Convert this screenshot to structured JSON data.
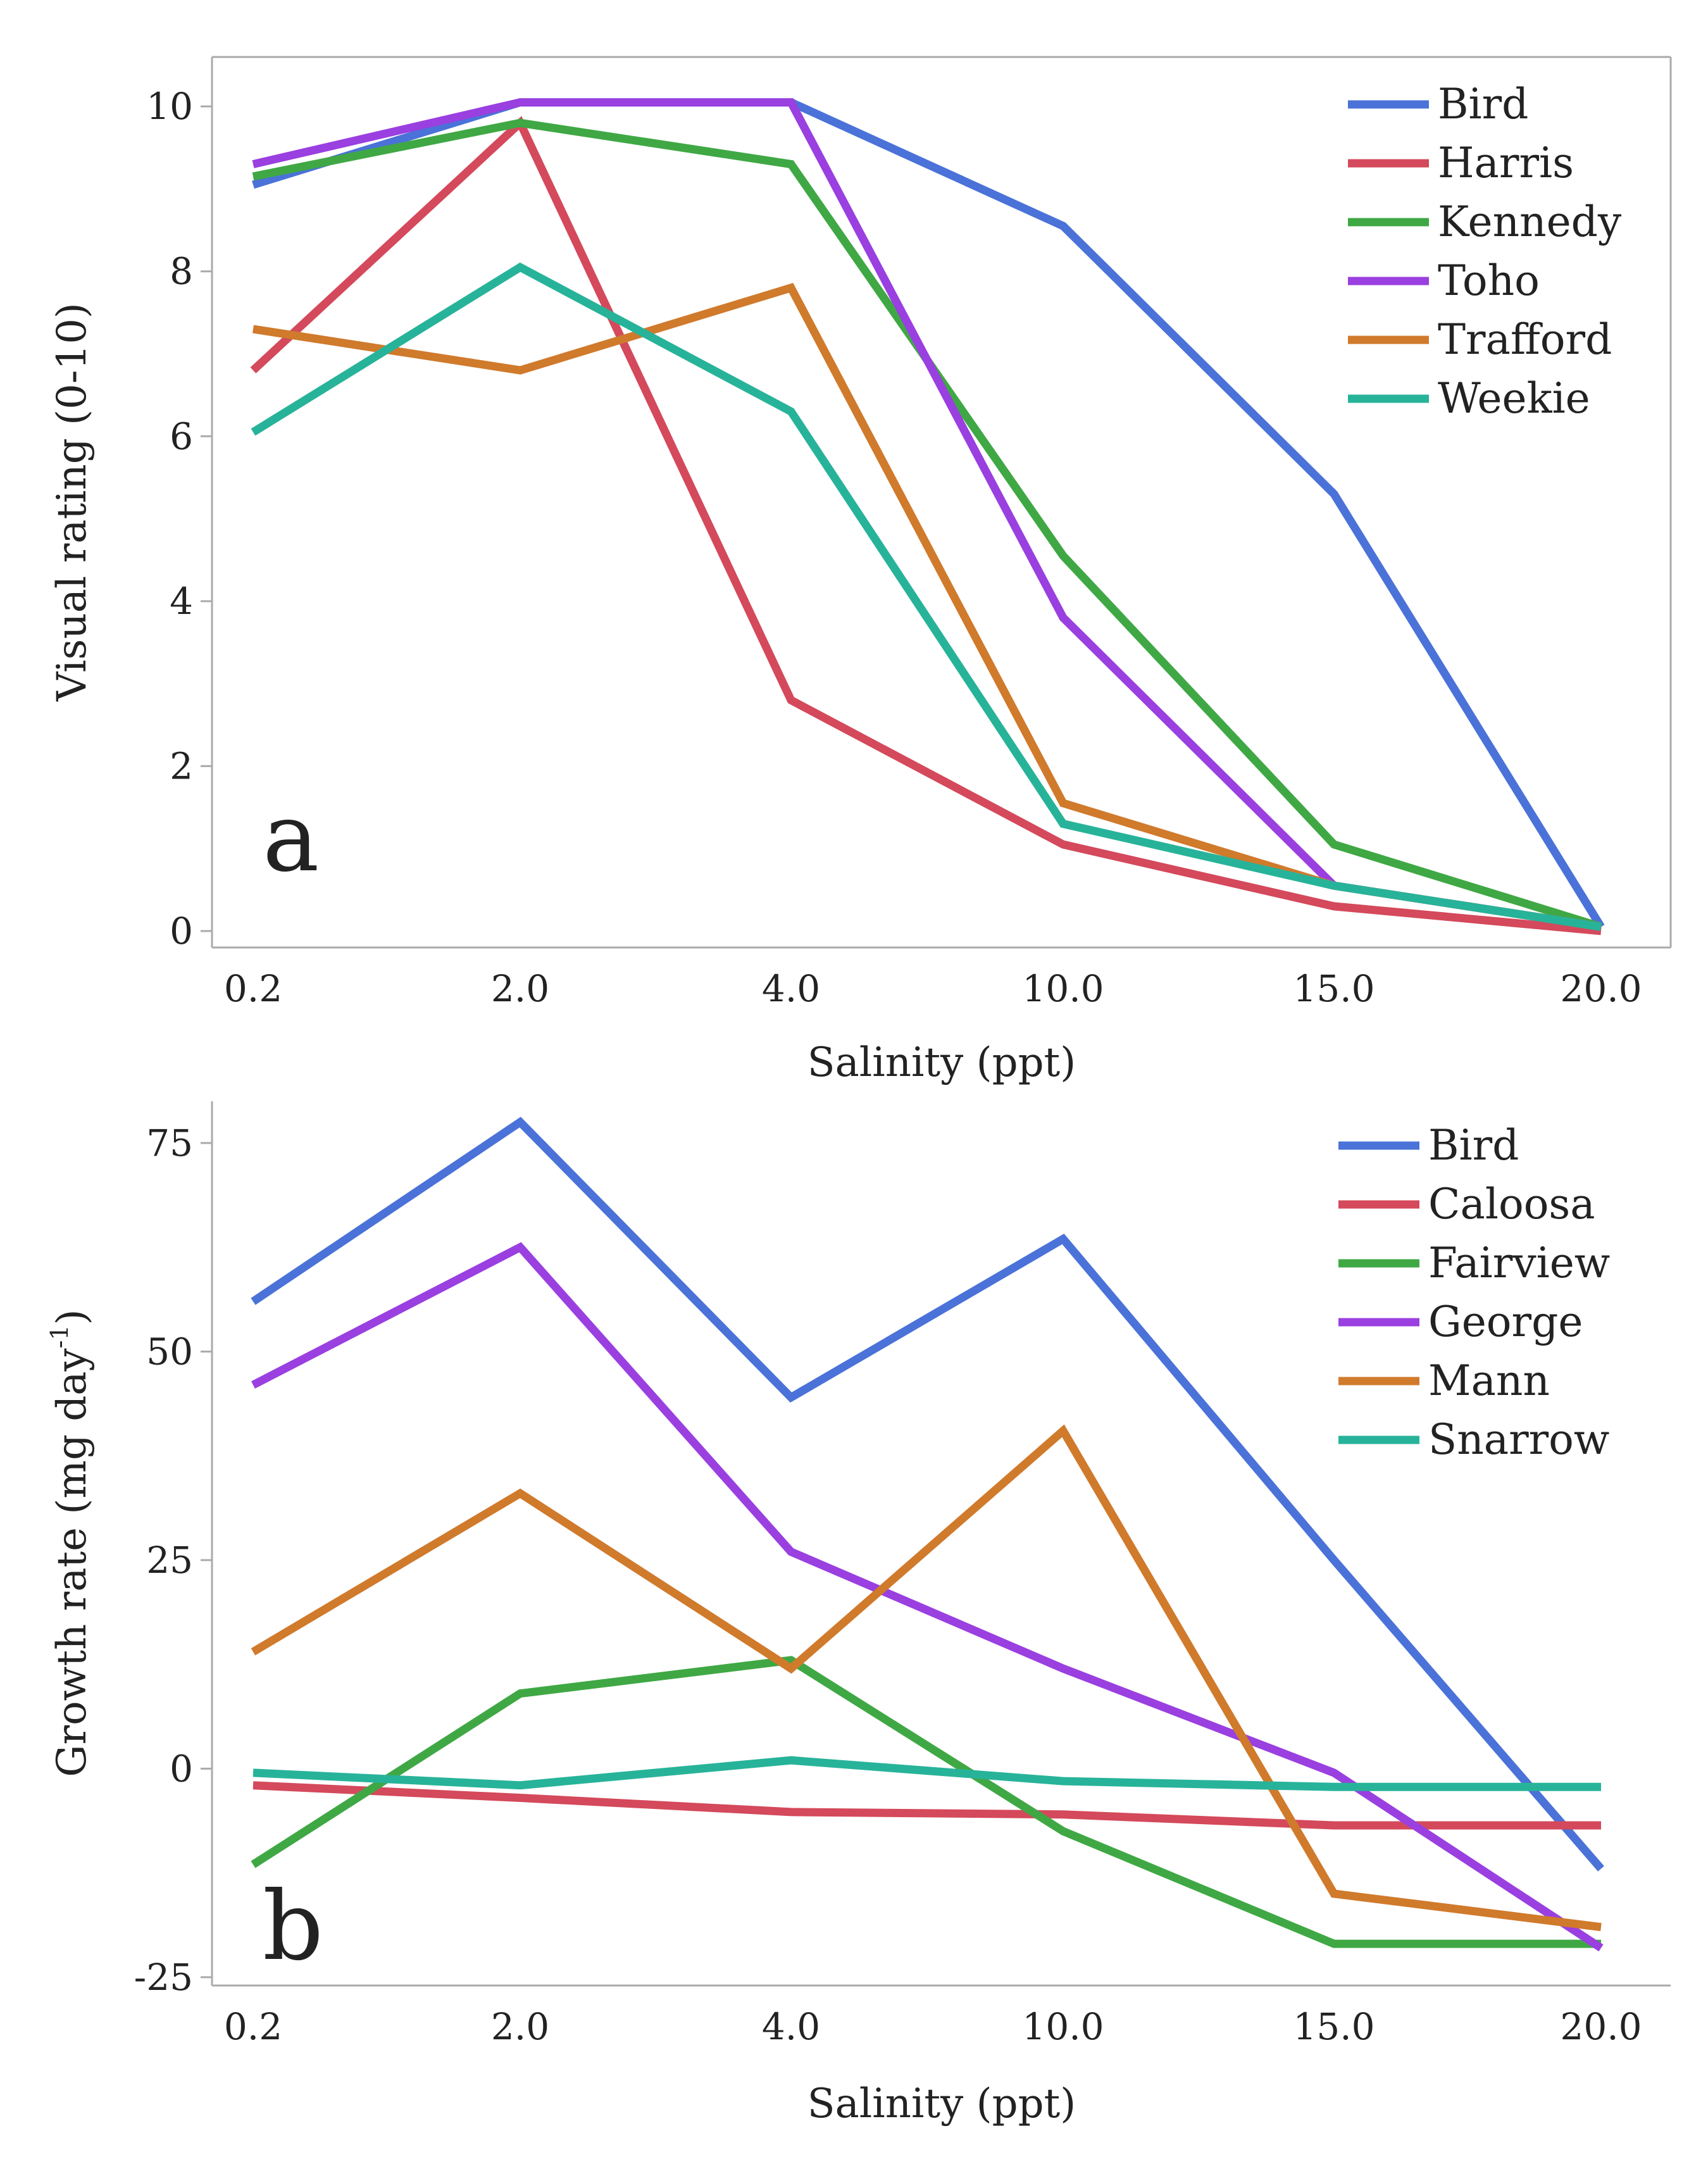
{
  "chart_data": [
    {
      "type": "line",
      "panel_label": "a",
      "xlabel": "Salinity (ppt)",
      "ylabel": "Visual rating (0-10)",
      "categories": [
        "0.2",
        "2.0",
        "4.0",
        "10.0",
        "15.0",
        "20.0"
      ],
      "ylim": [
        -0.2,
        10.6
      ],
      "yticks": [
        0,
        2,
        4,
        6,
        8,
        10
      ],
      "ytick_labels": [
        "0",
        "2",
        "4",
        "6",
        "8",
        "10"
      ],
      "legend_position": "top-right",
      "series": [
        {
          "name": "Bird",
          "color": "#4a72d8",
          "values": [
            9.05,
            10.05,
            10.05,
            8.55,
            5.3,
            0.05
          ]
        },
        {
          "name": "Harris",
          "color": "#d4495b",
          "values": [
            6.8,
            9.8,
            2.8,
            1.05,
            0.3,
            0.0
          ]
        },
        {
          "name": "Kennedy",
          "color": "#3fa844",
          "values": [
            9.15,
            9.8,
            9.3,
            4.55,
            1.05,
            0.05
          ]
        },
        {
          "name": "Toho",
          "color": "#9a3fe0",
          "values": [
            9.3,
            10.05,
            10.05,
            3.8,
            0.55,
            0.05
          ]
        },
        {
          "name": "Trafford",
          "color": "#d07a2c",
          "values": [
            7.3,
            6.8,
            7.8,
            1.55,
            0.55,
            0.05
          ]
        },
        {
          "name": "Weekie",
          "color": "#27b399",
          "values": [
            6.05,
            8.05,
            6.3,
            1.3,
            0.55,
            0.05
          ]
        }
      ]
    },
    {
      "type": "line",
      "panel_label": "b",
      "xlabel": "Salinity (ppt)",
      "ylabel": "Growth rate (mg day",
      "ylabel_superscript": "-1",
      "ylabel_suffix": ")",
      "categories": [
        "0.2",
        "2.0",
        "4.0",
        "10.0",
        "15.0",
        "20.0"
      ],
      "ylim": [
        -26,
        80
      ],
      "yticks": [
        -25,
        0,
        25,
        50,
        75
      ],
      "ytick_labels": [
        "-25",
        "0",
        "25",
        "50",
        "75"
      ],
      "legend_position": "top-right",
      "series": [
        {
          "name": "Bird",
          "color": "#4a72d8",
          "values": [
            56,
            77.5,
            44.5,
            63.5,
            25,
            -12
          ]
        },
        {
          "name": "Caloosa",
          "color": "#d4495b",
          "values": [
            -2,
            -3.5,
            -5.2,
            -5.5,
            -6.8,
            -6.8
          ]
        },
        {
          "name": "Fairview",
          "color": "#3fa844",
          "values": [
            -11.5,
            9,
            13,
            -7.5,
            -21,
            -21
          ]
        },
        {
          "name": "George",
          "color": "#9a3fe0",
          "values": [
            46,
            62.5,
            26,
            12,
            -0.5,
            -21.5
          ]
        },
        {
          "name": "Mann",
          "color": "#d07a2c",
          "values": [
            14,
            33,
            12,
            40.5,
            -15,
            -19
          ]
        },
        {
          "name": "Snarrow",
          "color": "#27b399",
          "values": [
            -0.5,
            -2,
            1,
            -1.5,
            -2.2,
            -2.2
          ]
        }
      ]
    }
  ]
}
